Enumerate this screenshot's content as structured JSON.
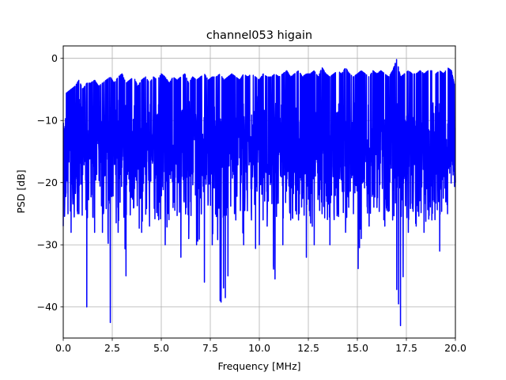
{
  "chart_data": {
    "type": "line",
    "title": "channel053 higain",
    "xlabel": "Frequency [MHz]",
    "ylabel": "PSD [dB]",
    "xlim": [
      0,
      20
    ],
    "ylim": [
      -45,
      2
    ],
    "xticks": [
      "0.0",
      "2.5",
      "5.0",
      "7.5",
      "10.0",
      "12.5",
      "15.0",
      "17.5",
      "20.0"
    ],
    "yticks": [
      "0",
      "−10",
      "−20",
      "−30",
      "−40"
    ],
    "grid": true,
    "series_color": "#0000ff",
    "series": [
      {
        "x": [
          0.0,
          0.2,
          0.4,
          0.6,
          0.8,
          1.0,
          1.2,
          1.4,
          1.6,
          1.8,
          2.0,
          2.2,
          2.4,
          2.6,
          2.8,
          3.0,
          3.2,
          3.4,
          3.6,
          3.8,
          4.0,
          4.2,
          4.4,
          4.6,
          4.8,
          5.0,
          5.2,
          5.4,
          5.6,
          5.8,
          6.0,
          6.2,
          6.4,
          6.6,
          6.8,
          7.0,
          7.2,
          7.4,
          7.6,
          7.8,
          8.0,
          8.2,
          8.4,
          8.6,
          8.8,
          9.0,
          9.2,
          9.4,
          9.6,
          9.8,
          10.0,
          10.2,
          10.4,
          10.6,
          10.8,
          11.0,
          11.2,
          11.4,
          11.6,
          11.8,
          12.0,
          12.2,
          12.4,
          12.6,
          12.8,
          13.0,
          13.2,
          13.4,
          13.6,
          13.8,
          14.0,
          14.2,
          14.4,
          14.6,
          14.8,
          15.0,
          15.2,
          15.4,
          15.6,
          15.8,
          16.0,
          16.2,
          16.4,
          16.6,
          16.8,
          17.0,
          17.2,
          17.4,
          17.6,
          17.8,
          18.0,
          18.2,
          18.4,
          18.6,
          18.8,
          19.0,
          19.2,
          19.4,
          19.6,
          19.8,
          20.0
        ],
        "max": [
          -6,
          -5.5,
          -5,
          -4.5,
          -3.5,
          -5,
          -4,
          -4,
          -3.5,
          -4.5,
          -4,
          -3.5,
          -3,
          -4,
          -3,
          -2.5,
          -4,
          -3.5,
          -3,
          -4.5,
          -3.5,
          -3,
          -4,
          -3,
          -3.5,
          -2.5,
          -3,
          -4,
          -3,
          -3.5,
          -3,
          -2.5,
          -4,
          -3,
          -3.5,
          -3,
          -2.5,
          -3.5,
          -3,
          -3,
          -2.5,
          -3.5,
          -3,
          -2.5,
          -3,
          -3.5,
          -2.5,
          -3,
          -2.5,
          -3,
          -3.5,
          -2.5,
          -3,
          -3,
          -2.5,
          -3,
          -2.5,
          -2,
          -3,
          -2.5,
          -2,
          -3,
          -2.5,
          -2.5,
          -2,
          -3,
          -1.5,
          -2.5,
          -3,
          -2.5,
          -2,
          -2.5,
          -1.5,
          -2.5,
          -3,
          -2.5,
          -2,
          -2.5,
          -3,
          -2,
          -2.5,
          -2,
          -2.5,
          -3,
          -2,
          -0.2,
          -3,
          -2.5,
          -2,
          -2.5,
          -2.5,
          -2,
          -2.5,
          -2,
          -2,
          -2.5,
          -2,
          -2.5,
          -1.5,
          -2,
          -5
        ],
        "min": [
          -27,
          -37,
          -28,
          -25,
          -25,
          -33,
          -40,
          -25,
          -28,
          -30,
          -28,
          -24,
          -42.5,
          -25,
          -28,
          -29,
          -35,
          -27,
          -24,
          -30,
          -28,
          -25,
          -27,
          -29,
          -24,
          -32,
          -30,
          -28,
          -24,
          -25,
          -32,
          -28,
          -29,
          -25,
          -30,
          -33,
          -36,
          -26,
          -30,
          -28,
          -39,
          -41,
          -35,
          -30,
          -26,
          -27,
          -30,
          -28,
          -26,
          -31,
          -30,
          -29,
          -27,
          -33,
          -35.5,
          -27,
          -30,
          -31,
          -26,
          -28,
          -26,
          -25,
          -32,
          -27,
          -30,
          -28,
          -25,
          -26,
          -30,
          -27,
          -25,
          -33,
          -28,
          -24,
          -25,
          -39,
          -29,
          -30,
          -27,
          -25,
          -24,
          -26,
          -27,
          -31,
          -26,
          -41,
          -43,
          -32,
          -28,
          -24,
          -27,
          -32,
          -28,
          -27,
          -26,
          -28,
          -31,
          -24,
          -25,
          -23,
          -20
        ]
      }
    ]
  }
}
